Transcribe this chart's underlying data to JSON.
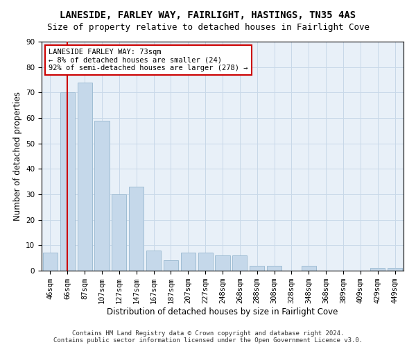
{
  "title": "LANESIDE, FARLEY WAY, FAIRLIGHT, HASTINGS, TN35 4AS",
  "subtitle": "Size of property relative to detached houses in Fairlight Cove",
  "xlabel": "Distribution of detached houses by size in Fairlight Cove",
  "ylabel": "Number of detached properties",
  "categories": [
    "46sqm",
    "66sqm",
    "87sqm",
    "107sqm",
    "127sqm",
    "147sqm",
    "167sqm",
    "187sqm",
    "207sqm",
    "227sqm",
    "248sqm",
    "268sqm",
    "288sqm",
    "308sqm",
    "328sqm",
    "348sqm",
    "368sqm",
    "389sqm",
    "409sqm",
    "429sqm",
    "449sqm"
  ],
  "values": [
    7,
    70,
    74,
    59,
    30,
    33,
    8,
    4,
    7,
    7,
    6,
    6,
    2,
    2,
    0,
    2,
    0,
    0,
    0,
    1,
    1
  ],
  "bar_color": "#c5d8ea",
  "bar_edge_color": "#a0bdd4",
  "vline_color": "#cc0000",
  "vline_position": 1.0,
  "annotation_text": "LANESIDE FARLEY WAY: 73sqm\n← 8% of detached houses are smaller (24)\n92% of semi-detached houses are larger (278) →",
  "annotation_box_color": "#ffffff",
  "annotation_box_edge": "#cc0000",
  "ylim": [
    0,
    90
  ],
  "yticks": [
    0,
    10,
    20,
    30,
    40,
    50,
    60,
    70,
    80,
    90
  ],
  "grid_color": "#c8d8e8",
  "bg_color": "#e8f0f8",
  "footer": "Contains HM Land Registry data © Crown copyright and database right 2024.\nContains public sector information licensed under the Open Government Licence v3.0.",
  "title_fontsize": 10,
  "subtitle_fontsize": 9,
  "xlabel_fontsize": 8.5,
  "ylabel_fontsize": 8.5,
  "tick_fontsize": 7.5,
  "annotation_fontsize": 7.5,
  "footer_fontsize": 6.5
}
